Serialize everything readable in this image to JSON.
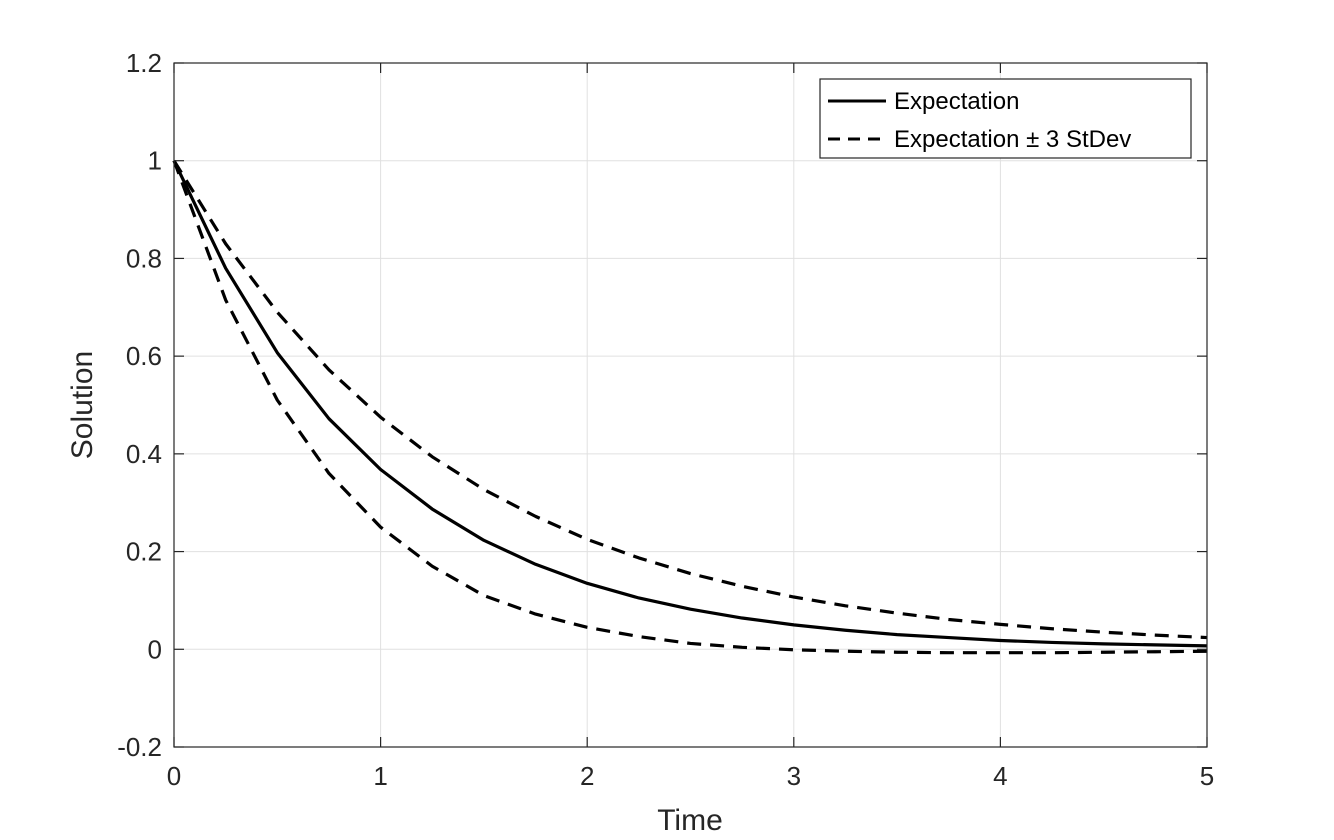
{
  "chart_data": {
    "type": "line",
    "title": "",
    "xlabel": "Time",
    "ylabel": "Solution",
    "xlim": [
      0,
      5
    ],
    "ylim": [
      -0.2,
      1.2
    ],
    "xticks": [
      0,
      1,
      2,
      3,
      4,
      5
    ],
    "xtick_labels": [
      "0",
      "1",
      "2",
      "3",
      "4",
      "5"
    ],
    "yticks": [
      -0.2,
      0,
      0.2,
      0.4,
      0.6,
      0.8,
      1,
      1.2
    ],
    "ytick_labels": [
      "-0.2",
      "0",
      "0.2",
      "0.4",
      "0.6",
      "0.8",
      "1",
      "1.2"
    ],
    "grid": true,
    "legend_position": "top-right",
    "x": [
      0,
      0.25,
      0.5,
      0.75,
      1,
      1.25,
      1.5,
      1.75,
      2,
      2.25,
      2.5,
      2.75,
      3,
      3.25,
      3.5,
      3.75,
      4,
      4.25,
      4.5,
      4.75,
      5
    ],
    "series": [
      {
        "name": "Expectation",
        "style": "solid",
        "color": "#000000",
        "values": [
          1,
          0.78,
          0.607,
          0.472,
          0.368,
          0.287,
          0.223,
          0.174,
          0.135,
          0.105,
          0.082,
          0.064,
          0.05,
          0.039,
          0.03,
          0.024,
          0.018,
          0.014,
          0.011,
          0.009,
          0.007
        ]
      },
      {
        "name": "Expectation ± 3 StDev",
        "style": "dashed",
        "color": "#000000",
        "values": [
          1,
          0.83,
          0.69,
          0.572,
          0.475,
          0.394,
          0.327,
          0.272,
          0.225,
          0.187,
          0.155,
          0.129,
          0.107,
          0.089,
          0.074,
          0.061,
          0.051,
          0.042,
          0.035,
          0.029,
          0.024
        ]
      },
      {
        "name": "",
        "style": "dashed",
        "color": "#000000",
        "values": [
          1,
          0.715,
          0.51,
          0.36,
          0.25,
          0.17,
          0.11,
          0.072,
          0.045,
          0.026,
          0.012,
          0.004,
          -0.001,
          -0.004,
          -0.006,
          -0.007,
          -0.007,
          -0.007,
          -0.006,
          -0.005,
          -0.004
        ]
      }
    ]
  }
}
